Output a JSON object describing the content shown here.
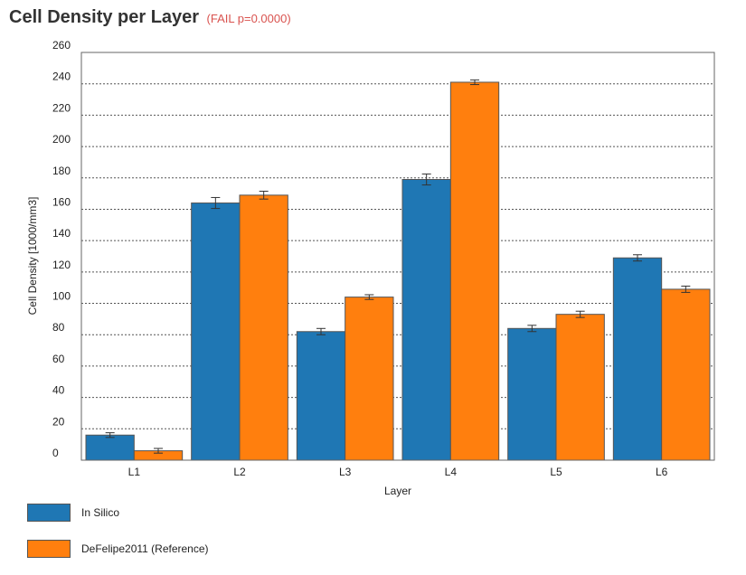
{
  "header": {
    "title": "Cell Density per Layer",
    "status": "(FAIL p=0.0000)"
  },
  "colors": {
    "series_0": "#1f77b4",
    "series_1": "#ff7f0e",
    "status": "#d9534f",
    "error_bar": "#333333"
  },
  "chart_data": {
    "type": "bar",
    "xlabel": "Layer",
    "ylabel": "Cell Density [1000/mm3]",
    "categories": [
      "L1",
      "L2",
      "L3",
      "L4",
      "L5",
      "L6"
    ],
    "ylim": [
      0,
      260
    ],
    "yticks": [
      0,
      20,
      40,
      60,
      80,
      100,
      120,
      140,
      160,
      180,
      200,
      220,
      240,
      260
    ],
    "grid": true,
    "legend_position": "bottom-left",
    "series": [
      {
        "name": "In Silico",
        "values": [
          16,
          164,
          82,
          179,
          84,
          129
        ],
        "errors": [
          1.5,
          3.5,
          2,
          3.5,
          2,
          2
        ]
      },
      {
        "name": "DeFelipe2011 (Reference)",
        "values": [
          6,
          169,
          104,
          241,
          93,
          109
        ],
        "errors": [
          1.5,
          2.5,
          1.5,
          1.5,
          2,
          2
        ]
      }
    ]
  }
}
